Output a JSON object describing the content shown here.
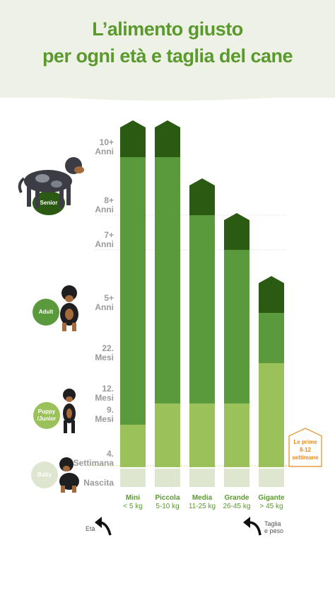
{
  "header": {
    "title_line1": "L’alimento giusto",
    "title_line2": "per ogni età e taglia del cane"
  },
  "colors": {
    "title": "#5a9a2c",
    "senior": "#2b5a12",
    "adult": "#5a9a3c",
    "puppy": "#9bc25a",
    "baby": "#dfe6cf",
    "callout": "#e8891a"
  },
  "stages": [
    {
      "name": "Senior",
      "color": "#2b5a12"
    },
    {
      "name": "Adult",
      "color": "#5a9a3c"
    },
    {
      "name": "Puppy /Junior",
      "line1": "Puppy",
      "line2": "/Junior",
      "color": "#9bc25a"
    },
    {
      "name": "Baby",
      "color": "#dfe6cf"
    }
  ],
  "callout": {
    "line1": "Le prime",
    "line2": "8-12",
    "line3": "settimane"
  },
  "arrows": {
    "age_label": "Età",
    "size_label_line1": "Taglia",
    "size_label_line2": "e peso"
  },
  "chart_data": {
    "type": "bar",
    "stacked": true,
    "y_axis_ticks": [
      {
        "line1": "Nascita",
        "line2": ""
      },
      {
        "line1": "4.",
        "line2": "Settimana"
      },
      {
        "line1": "9.",
        "line2": "Mesi"
      },
      {
        "line1": "12.",
        "line2": "Mesi"
      },
      {
        "line1": "22.",
        "line2": "Mesi"
      },
      {
        "line1": "5+",
        "line2": "Anni"
      },
      {
        "line1": "7+",
        "line2": "Anni"
      },
      {
        "line1": "8+",
        "line2": "Anni"
      },
      {
        "line1": "10+",
        "line2": "Anni"
      }
    ],
    "categories": [
      {
        "name": "Mini",
        "weight": "< 5 kg"
      },
      {
        "name": "Piccola",
        "weight": "5-10 kg"
      },
      {
        "name": "Media",
        "weight": "11-25 kg"
      },
      {
        "name": "Grande",
        "weight": "26-45 kg"
      },
      {
        "name": "Gigante",
        "weight": "> 45 kg"
      }
    ],
    "segments": [
      {
        "category": "Mini",
        "baby": "Nascita–4. Settimana",
        "puppy": "4. Settimana–9. Mesi",
        "adult": "9. Mesi–10+ Anni",
        "senior": "10+ Anni"
      },
      {
        "category": "Piccola",
        "baby": "Nascita–4. Settimana",
        "puppy": "4. Settimana–12. Mesi",
        "adult": "12. Mesi–10+ Anni",
        "senior": "10+ Anni"
      },
      {
        "category": "Media",
        "baby": "Nascita–4. Settimana",
        "puppy": "4. Settimana–12. Mesi",
        "adult": "12. Mesi–8+ Anni",
        "senior": "8+ Anni"
      },
      {
        "category": "Grande",
        "baby": "Nascita–4. Settimana",
        "puppy": "4. Settimana–12. Mesi",
        "adult": "12. Mesi–7+ Anni",
        "senior": "7+ Anni"
      },
      {
        "category": "Gigante",
        "baby": "Nascita–4. Settimana",
        "puppy": "4. Settimana–22. Mesi",
        "adult": "22. Mesi–5+ Anni",
        "senior": "5+ Anni"
      }
    ],
    "bar_levels": {
      "baby_top": [
        1,
        1,
        1,
        1,
        1
      ],
      "puppy_top": [
        2,
        3,
        3,
        3,
        4
      ],
      "adult_top": [
        8,
        8,
        7,
        6,
        5
      ]
    }
  }
}
